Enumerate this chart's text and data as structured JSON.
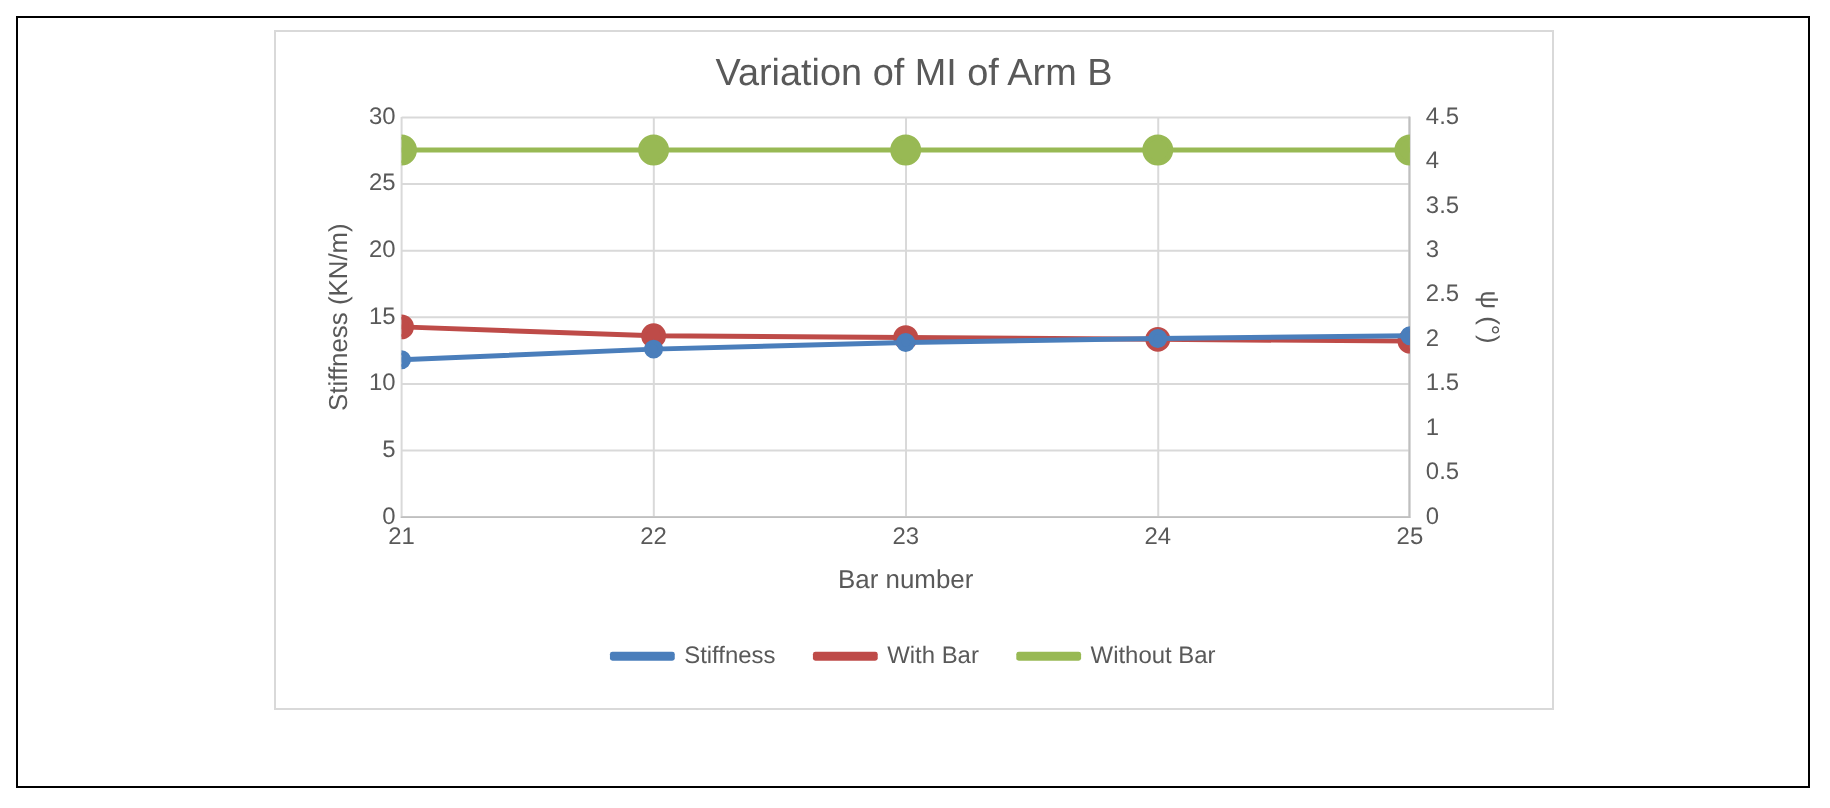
{
  "chart_data": {
    "type": "line",
    "title": "Variation of MI of Arm B",
    "xlabel": "Bar number",
    "ylabel": "Stiffness (KN/m)",
    "y2label": "ψ (°)",
    "x": [
      21,
      22,
      23,
      24,
      25
    ],
    "xlim": [
      21,
      25
    ],
    "xticks": [
      21,
      22,
      23,
      24,
      25
    ],
    "ylim": [
      0,
      30
    ],
    "yticks": [
      0,
      5,
      10,
      15,
      20,
      25,
      30
    ],
    "y2lim": [
      0,
      4.5
    ],
    "y2ticks": [
      0,
      0.5,
      1,
      1.5,
      2,
      2.5,
      3,
      3.5,
      4,
      4.5
    ],
    "grid": true,
    "legend": "bottom",
    "marker": "circle",
    "line_style": "solid",
    "series": [
      {
        "name": "Stiffness",
        "color": "#4a7ebb",
        "values": [
          11.8,
          12.6,
          13.1,
          13.4,
          13.6
        ]
      },
      {
        "name": "With Bar",
        "color": "#be4b48",
        "axis": "y2",
        "values": [
          2.14,
          2.04,
          2.02,
          2.0,
          1.98
        ]
      },
      {
        "name": "Without Bar",
        "color": "#98b954",
        "axis": "y2",
        "values": [
          4.13,
          4.13,
          4.13,
          4.13,
          4.13
        ]
      }
    ]
  }
}
